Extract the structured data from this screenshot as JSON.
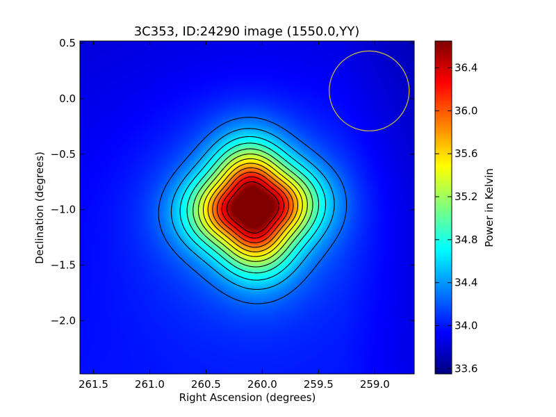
{
  "chart_data": {
    "type": "heatmap",
    "title": "3C353, ID:24290 image (1550.0,YY)",
    "xlabel": "Right Ascension (degrees)",
    "ylabel": "Declination (degrees)",
    "xlim": [
      261.62,
      258.65
    ],
    "ylim": [
      -2.48,
      0.52
    ],
    "x_ticks": [
      261.5,
      261.0,
      260.5,
      260.0,
      259.5,
      259.0
    ],
    "x_tick_labels": [
      "261.5",
      "261.0",
      "260.5",
      "260.0",
      "259.5",
      "259.0"
    ],
    "y_ticks": [
      0.5,
      0.0,
      -0.5,
      -1.0,
      -1.5,
      -2.0
    ],
    "y_tick_labels": [
      "0.5",
      "0.0",
      "−0.5",
      "−1.0",
      "−1.5",
      "−2.0"
    ],
    "colormap": "jet",
    "colorbar": {
      "label": "Power in Kelvin",
      "range": [
        33.55,
        36.65
      ],
      "ticks": [
        33.6,
        34.0,
        34.4,
        34.8,
        35.2,
        35.6,
        36.0,
        36.4
      ],
      "tick_labels": [
        "33.6",
        "34.0",
        "34.4",
        "34.8",
        "35.2",
        "35.6",
        "36.0",
        "36.4"
      ]
    },
    "source": {
      "center_ra": 260.08,
      "center_dec": -0.98,
      "peak": 36.65,
      "background": 33.9,
      "sigma_deg": 0.33
    },
    "beam_circle": {
      "center_ra": 259.05,
      "center_dec": 0.07,
      "radius_deg": 0.36,
      "color": "#d4c23a"
    },
    "contours": {
      "color": "#000000",
      "count": 12
    },
    "grid": false,
    "legend": "none"
  }
}
